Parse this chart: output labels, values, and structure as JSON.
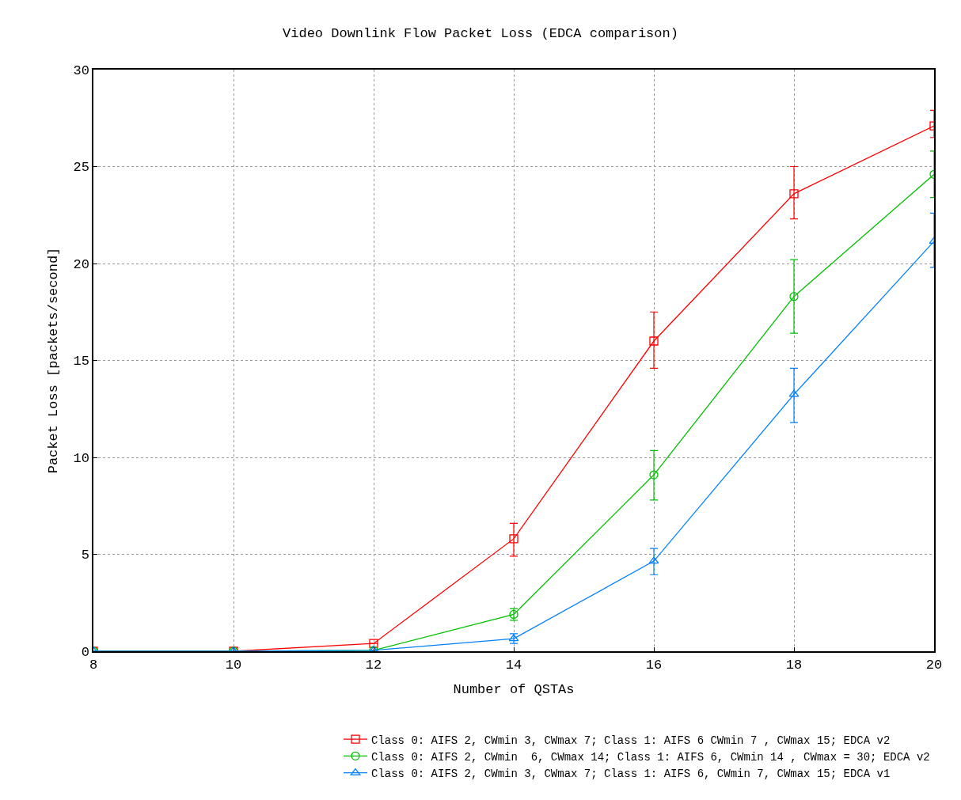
{
  "chart_data": {
    "type": "line",
    "title": "Video Downlink Flow Packet Loss (EDCA comparison)",
    "xlabel": "Number of QSTAs",
    "ylabel": "Packet Loss [packets/second]",
    "x": [
      8,
      10,
      12,
      14,
      16,
      18,
      20
    ],
    "series": [
      {
        "name": "Class 0: AIFS 2, CWmin 3, CWmax 7; Class 1: AIFS 6 CWmin 7 , CWmax 15; EDCA v2",
        "color": "#ff0000",
        "marker": "square",
        "values": [
          0,
          0,
          0.4,
          5.8,
          16.0,
          23.6,
          27.1
        ],
        "errors": [
          null,
          null,
          null,
          [
            4.9,
            6.6
          ],
          [
            14.6,
            17.5
          ],
          [
            22.3,
            25.0
          ],
          [
            26.5,
            27.9
          ]
        ]
      },
      {
        "name": "Class 0: AIFS 2, CWmin  6, CWmax 14; Class 1: AIFS 6, CWmin 14 , CWmax = 30; EDCA v2",
        "color": "#00c000",
        "marker": "circle",
        "values": [
          0,
          0,
          0.05,
          1.9,
          9.1,
          18.3,
          24.6
        ],
        "errors": [
          null,
          null,
          null,
          [
            1.6,
            2.2
          ],
          [
            7.8,
            10.35
          ],
          [
            16.4,
            20.2
          ],
          [
            23.4,
            25.8
          ]
        ]
      },
      {
        "name": "Class 0: AIFS 2, CWmin 3, CWmax 7; Class 1: AIFS 6, CWmin 7, CWmax 15; EDCA v1",
        "color": "#0080ff",
        "marker": "triangle",
        "values": [
          0,
          0,
          0.05,
          0.65,
          4.65,
          13.25,
          21.15
        ],
        "errors": [
          null,
          null,
          null,
          [
            0.4,
            0.9
          ],
          [
            3.95,
            5.3
          ],
          [
            11.8,
            14.6
          ],
          [
            19.8,
            22.6
          ]
        ]
      }
    ],
    "xlim": [
      8,
      20
    ],
    "xticks": [
      8,
      10,
      12,
      14,
      16,
      18,
      20
    ],
    "ylim": [
      0,
      30
    ],
    "yticks": [
      0,
      5,
      10,
      15,
      20,
      25,
      30
    ],
    "grid": true,
    "legend": "bottom right",
    "line_style": "solid"
  }
}
